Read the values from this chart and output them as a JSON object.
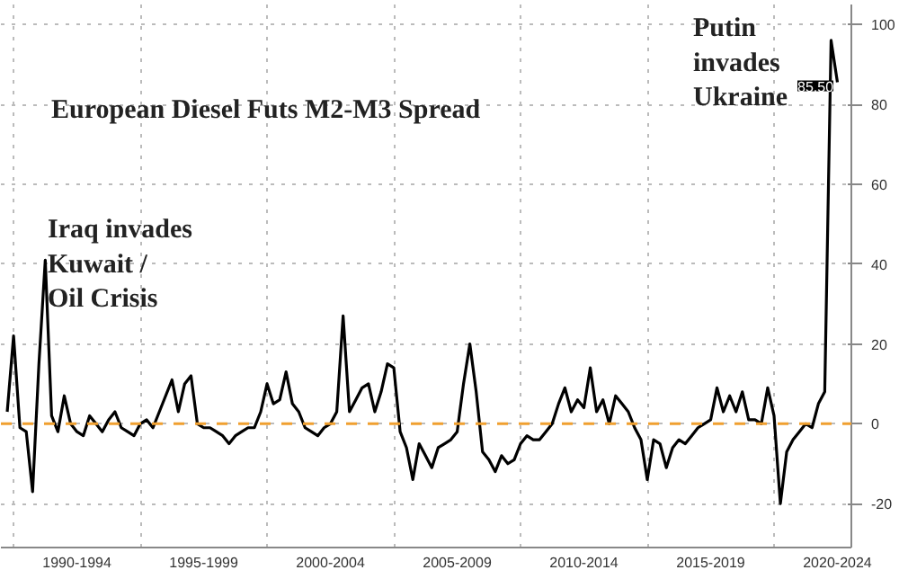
{
  "chart_data": {
    "type": "line",
    "title": "European Diesel Futs M2-M3 Spread",
    "categories": [
      null,
      null,
      null,
      null,
      null,
      null,
      null,
      null,
      null,
      null,
      null,
      "1990-1994",
      null,
      null,
      null,
      null,
      null,
      null,
      null,
      null,
      null,
      null,
      null,
      null,
      null,
      null,
      null,
      null,
      null,
      null,
      null,
      "1995-1999",
      null,
      null,
      null,
      null,
      null,
      null,
      null,
      null,
      null,
      null,
      null,
      null,
      null,
      null,
      null,
      null,
      null,
      null,
      null,
      "2000-2004",
      null,
      null,
      null,
      null,
      null,
      null,
      null,
      null,
      null,
      null,
      null,
      null,
      null,
      null,
      null,
      null,
      null,
      null,
      null,
      "2005-2009",
      null,
      null,
      null,
      null,
      null,
      null,
      null,
      null,
      null,
      null,
      null,
      null,
      null,
      null,
      null,
      null,
      null,
      null,
      null,
      "2010-2014",
      null,
      null,
      null,
      null,
      null,
      null,
      null,
      null,
      null,
      null,
      null,
      null,
      null,
      null,
      null,
      null,
      null,
      null,
      null,
      "2015-2019",
      null,
      null,
      null,
      null,
      null,
      null,
      null,
      null,
      null,
      null,
      null,
      null,
      null,
      null,
      null,
      null,
      null,
      null,
      null,
      "2020-2024"
    ],
    "series": [
      {
        "color": "#000000",
        "values": [
          3,
          22,
          -1,
          -2,
          -17,
          15,
          41,
          2,
          -2,
          7,
          0,
          -2,
          -3,
          2,
          0,
          -2,
          1,
          3,
          -1,
          -2,
          -3,
          0,
          1,
          -1,
          3,
          7,
          11,
          3,
          10,
          12,
          0,
          -1,
          -1,
          -2,
          -3,
          -5,
          -3,
          -2,
          -1,
          -1,
          3,
          10,
          5,
          6,
          13,
          5,
          3,
          -1,
          -2,
          -3,
          -1,
          0,
          3,
          27,
          3,
          6,
          9,
          10,
          3,
          8,
          15,
          14,
          -2,
          -6,
          -14,
          -5,
          -8,
          -11,
          -6,
          -5,
          -4,
          -2,
          10,
          20,
          8,
          -7,
          -9,
          -12,
          -8,
          -10,
          -9,
          -5,
          -3,
          -4,
          -4,
          -2,
          0,
          5,
          9,
          3,
          6,
          4,
          14,
          3,
          6,
          0,
          7,
          5,
          3,
          -1,
          -4,
          -14,
          -4,
          -5,
          -11,
          -6,
          -4,
          -5,
          -3,
          -1,
          0,
          1,
          9,
          3,
          7,
          3,
          8,
          1,
          1,
          0,
          9,
          2,
          -20,
          -7,
          -4,
          -2,
          0,
          -1,
          5,
          8,
          96,
          85.5
        ]
      }
    ],
    "ylim": [
      -31,
      105
    ],
    "yticks": [
      -20,
      0,
      20,
      40,
      60,
      80,
      100
    ],
    "grid": true,
    "line_style": "solid",
    "ref_lines": [
      {
        "axis": "y",
        "value": 0,
        "color": "#f0a030",
        "line_style": "dashed"
      }
    ],
    "annotations": [
      "Iraq invades\nKuwait /\nOil Crisis",
      "Putin\ninvades\nUkraine",
      "85.50"
    ]
  }
}
